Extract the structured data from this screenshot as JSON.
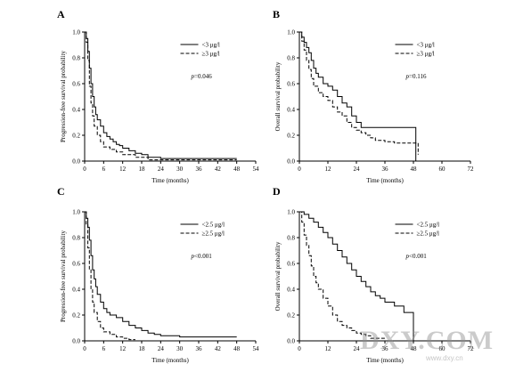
{
  "watermark": {
    "text": "DXY.COM",
    "url": "www.dxy.cn"
  },
  "chart_data": [
    {
      "type": "line",
      "panel": "A",
      "ylabel": "Progression-free survival probability",
      "xlabel": "Time (months)",
      "xticks": [
        0,
        6,
        12,
        18,
        24,
        30,
        36,
        42,
        48,
        54
      ],
      "yticks": [
        "0.0",
        "0.2",
        "0.4",
        "0.6",
        "0.8",
        "1.0"
      ],
      "xlim": [
        0,
        54
      ],
      "ylim": [
        0,
        1
      ],
      "p_text": "p=0.046",
      "legend_position": "top-right",
      "series": [
        {
          "name": "<3 μg/l",
          "style": "solid",
          "x": [
            0,
            0.5,
            1,
            1.5,
            2,
            2.5,
            3,
            3.5,
            4,
            5,
            6,
            7,
            8,
            9,
            10,
            11,
            12,
            14,
            16,
            18,
            20,
            24,
            30,
            36,
            42,
            48
          ],
          "y": [
            1.0,
            0.95,
            0.85,
            0.72,
            0.6,
            0.5,
            0.42,
            0.36,
            0.32,
            0.27,
            0.22,
            0.19,
            0.17,
            0.15,
            0.13,
            0.12,
            0.1,
            0.08,
            0.06,
            0.05,
            0.03,
            0.02,
            0.02,
            0.02,
            0.02,
            0.02
          ]
        },
        {
          "name": "≥3 μg/l",
          "style": "dashed",
          "x": [
            0,
            0.5,
            1,
            1.5,
            2,
            2.5,
            3,
            4,
            5,
            6,
            8,
            10,
            12,
            16,
            20,
            24,
            48
          ],
          "y": [
            1.0,
            0.92,
            0.78,
            0.58,
            0.45,
            0.35,
            0.27,
            0.2,
            0.15,
            0.11,
            0.09,
            0.07,
            0.05,
            0.03,
            0.01,
            0.01,
            0.01
          ]
        }
      ]
    },
    {
      "type": "line",
      "panel": "B",
      "ylabel": "Overall survival probability",
      "xlabel": "Time (months)",
      "xticks": [
        0,
        12,
        24,
        36,
        48,
        60,
        72
      ],
      "yticks": [
        "0.0",
        "0.2",
        "0.4",
        "0.6",
        "0.8",
        "1.0"
      ],
      "xlim": [
        0,
        72
      ],
      "ylim": [
        0,
        1
      ],
      "p_text": "p=0.116",
      "legend_position": "top-right",
      "series": [
        {
          "name": "<3 μg/l",
          "style": "solid",
          "x": [
            0,
            1,
            2,
            3,
            4,
            5,
            6,
            7,
            8,
            10,
            12,
            14,
            16,
            18,
            20,
            22,
            24,
            26,
            30,
            36,
            42,
            48,
            49,
            49
          ],
          "y": [
            1.0,
            0.96,
            0.92,
            0.88,
            0.84,
            0.78,
            0.72,
            0.68,
            0.65,
            0.6,
            0.58,
            0.55,
            0.5,
            0.45,
            0.42,
            0.35,
            0.3,
            0.26,
            0.26,
            0.26,
            0.26,
            0.26,
            0.26,
            0.0
          ]
        },
        {
          "name": "≥3 μg/l",
          "style": "dashed",
          "x": [
            0,
            1,
            2,
            3,
            4,
            5,
            6,
            8,
            10,
            12,
            14,
            16,
            18,
            20,
            22,
            24,
            26,
            28,
            30,
            32,
            36,
            40,
            44,
            48,
            50,
            50
          ],
          "y": [
            1.0,
            0.93,
            0.86,
            0.78,
            0.71,
            0.64,
            0.58,
            0.53,
            0.5,
            0.47,
            0.42,
            0.38,
            0.35,
            0.3,
            0.26,
            0.24,
            0.22,
            0.2,
            0.18,
            0.16,
            0.15,
            0.14,
            0.14,
            0.14,
            0.1,
            0.05
          ]
        }
      ]
    },
    {
      "type": "line",
      "panel": "C",
      "ylabel": "Progression-free survival probability",
      "xlabel": "Time (months)",
      "xticks": [
        0,
        6,
        12,
        18,
        24,
        30,
        36,
        42,
        48,
        54
      ],
      "yticks": [
        "0.0",
        "0.2",
        "0.4",
        "0.6",
        "0.8",
        "1.0"
      ],
      "xlim": [
        0,
        54
      ],
      "ylim": [
        0,
        1
      ],
      "p_text": "p<0.001",
      "legend_position": "top-right",
      "series": [
        {
          "name": "<2.5 μg/l",
          "style": "solid",
          "x": [
            0,
            0.5,
            1,
            1.5,
            2,
            2.5,
            3,
            3.5,
            4,
            5,
            6,
            7,
            8,
            10,
            12,
            14,
            16,
            18,
            20,
            22,
            24,
            30,
            36,
            42,
            48
          ],
          "y": [
            1.0,
            0.95,
            0.88,
            0.78,
            0.66,
            0.55,
            0.48,
            0.42,
            0.36,
            0.3,
            0.25,
            0.22,
            0.2,
            0.18,
            0.15,
            0.12,
            0.1,
            0.08,
            0.06,
            0.05,
            0.04,
            0.03,
            0.03,
            0.03,
            0.03
          ]
        },
        {
          "name": "≥2.5 μg/l",
          "style": "dashed",
          "x": [
            0,
            0.5,
            1,
            1.5,
            2,
            2.5,
            3,
            4,
            5,
            6,
            8,
            10,
            12,
            14,
            16
          ],
          "y": [
            1.0,
            0.9,
            0.72,
            0.55,
            0.4,
            0.3,
            0.22,
            0.15,
            0.1,
            0.07,
            0.05,
            0.03,
            0.02,
            0.01,
            0.01
          ]
        }
      ]
    },
    {
      "type": "line",
      "panel": "D",
      "ylabel": "Overall survival probability",
      "xlabel": "Time (months)",
      "xticks": [
        0,
        12,
        24,
        36,
        48,
        60,
        72
      ],
      "yticks": [
        "0.0",
        "0.2",
        "0.4",
        "0.6",
        "0.8",
        "1.0"
      ],
      "xlim": [
        0,
        72
      ],
      "ylim": [
        0,
        1
      ],
      "p_text": "p<0.001",
      "legend_position": "top-right",
      "series": [
        {
          "name": "<2.5 μg/l",
          "style": "solid",
          "x": [
            0,
            2,
            4,
            6,
            8,
            10,
            12,
            14,
            16,
            18,
            20,
            22,
            24,
            26,
            28,
            30,
            32,
            34,
            36,
            40,
            44,
            48,
            48
          ],
          "y": [
            1.0,
            0.98,
            0.95,
            0.92,
            0.88,
            0.84,
            0.8,
            0.75,
            0.7,
            0.65,
            0.6,
            0.55,
            0.5,
            0.46,
            0.42,
            0.38,
            0.35,
            0.33,
            0.3,
            0.27,
            0.22,
            0.12,
            0.0
          ]
        },
        {
          "name": "≥2.5 μg/l",
          "style": "dashed",
          "x": [
            0,
            1,
            2,
            3,
            4,
            5,
            6,
            7,
            8,
            10,
            12,
            14,
            16,
            18,
            20,
            22,
            24,
            26,
            28,
            30,
            36
          ],
          "y": [
            1.0,
            0.92,
            0.82,
            0.74,
            0.66,
            0.58,
            0.5,
            0.45,
            0.4,
            0.33,
            0.27,
            0.2,
            0.15,
            0.12,
            0.1,
            0.08,
            0.06,
            0.05,
            0.04,
            0.02,
            0.02
          ]
        }
      ]
    }
  ]
}
